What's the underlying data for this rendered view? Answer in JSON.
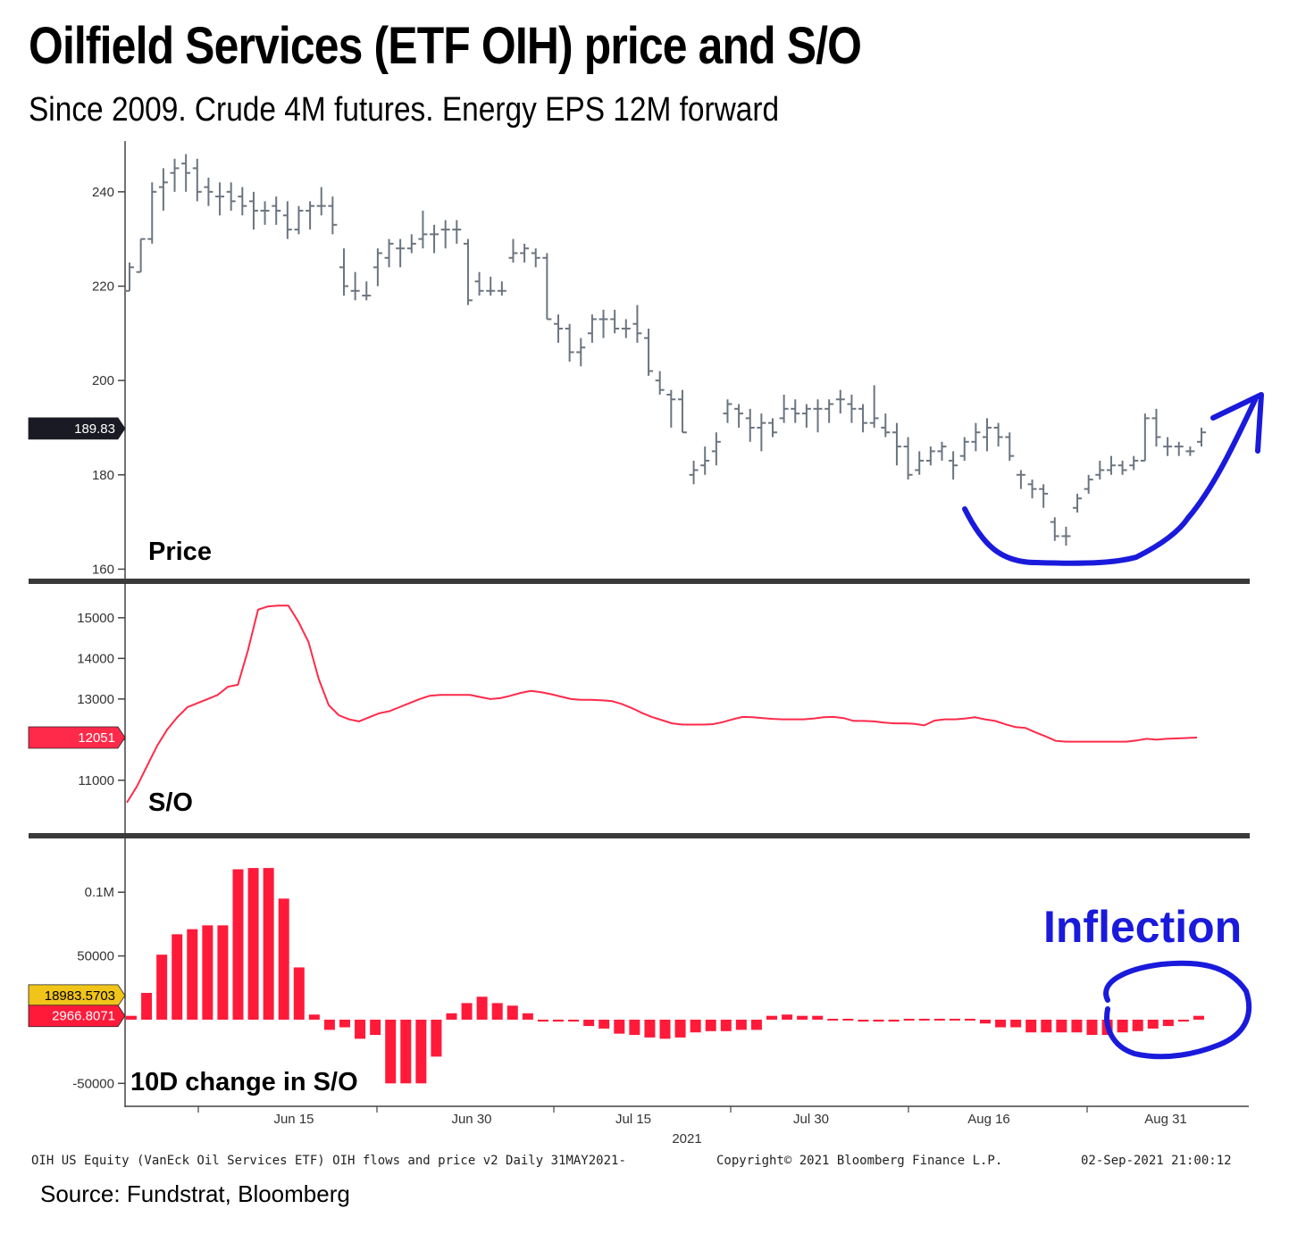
{
  "title": "Oilfield Services (ETF OIH) price and S/O",
  "subtitle": "Since 2009.  Crude 4M futures.  Energy EPS  12M forward",
  "source": "Source: Fundstrat, Bloomberg",
  "footer": {
    "left": "OIH US Equity (VanEck Oil Services ETF) OIH flows and price v2  Daily 31MAY2021-",
    "center": "Copyright© 2021 Bloomberg Finance L.P.",
    "right": "02-Sep-2021 21:00:12"
  },
  "annotation": "Inflection",
  "colors": {
    "price_bar": "#6b7580",
    "so_line": "#ff2a4a",
    "change_bar": "#ff1a3a",
    "annotation": "#1a1adc",
    "price_tag": "#1a1a24",
    "yellow_tag": "#f0c419"
  },
  "chart_data": [
    {
      "type": "ohlc",
      "panel_label": "Price",
      "ylim": [
        158,
        250
      ],
      "yticks": [
        "160",
        "180",
        "200",
        "220",
        "240"
      ],
      "last_value_label": "189.83",
      "bars": [
        {
          "o": 219,
          "h": 225,
          "l": 219,
          "c": 224
        },
        {
          "o": 223,
          "h": 230,
          "l": 223,
          "c": 230
        },
        {
          "o": 230,
          "h": 242,
          "l": 229,
          "c": 240
        },
        {
          "o": 241,
          "h": 245,
          "l": 236,
          "c": 242
        },
        {
          "o": 244,
          "h": 247,
          "l": 240,
          "c": 245
        },
        {
          "o": 246,
          "h": 248,
          "l": 240,
          "c": 244
        },
        {
          "o": 245,
          "h": 247,
          "l": 238,
          "c": 240
        },
        {
          "o": 241,
          "h": 243,
          "l": 237,
          "c": 240
        },
        {
          "o": 239,
          "h": 242,
          "l": 235,
          "c": 239
        },
        {
          "o": 240,
          "h": 242,
          "l": 236,
          "c": 238
        },
        {
          "o": 239,
          "h": 241,
          "l": 235,
          "c": 237
        },
        {
          "o": 238,
          "h": 240,
          "l": 232,
          "c": 236
        },
        {
          "o": 236,
          "h": 238,
          "l": 233,
          "c": 236
        },
        {
          "o": 237,
          "h": 239,
          "l": 233,
          "c": 236
        },
        {
          "o": 235,
          "h": 238,
          "l": 230,
          "c": 232
        },
        {
          "o": 232,
          "h": 237,
          "l": 231,
          "c": 236
        },
        {
          "o": 236,
          "h": 238,
          "l": 232,
          "c": 237
        },
        {
          "o": 237,
          "h": 241,
          "l": 235,
          "c": 237
        },
        {
          "o": 237,
          "h": 239,
          "l": 231,
          "c": 233
        },
        {
          "o": 224,
          "h": 228,
          "l": 218,
          "c": 220
        },
        {
          "o": 219,
          "h": 223,
          "l": 217,
          "c": 219
        },
        {
          "o": 218,
          "h": 221,
          "l": 217,
          "c": 218
        },
        {
          "o": 224,
          "h": 228,
          "l": 220,
          "c": 227
        },
        {
          "o": 226,
          "h": 230,
          "l": 224,
          "c": 229
        },
        {
          "o": 228,
          "h": 230,
          "l": 224,
          "c": 228
        },
        {
          "o": 228,
          "h": 231,
          "l": 227,
          "c": 229
        },
        {
          "o": 230,
          "h": 236,
          "l": 228,
          "c": 231
        },
        {
          "o": 231,
          "h": 233,
          "l": 227,
          "c": 231
        },
        {
          "o": 232,
          "h": 234,
          "l": 228,
          "c": 232
        },
        {
          "o": 232,
          "h": 234,
          "l": 229,
          "c": 232
        },
        {
          "o": 229,
          "h": 230,
          "l": 216,
          "c": 217
        },
        {
          "o": 221,
          "h": 223,
          "l": 218,
          "c": 219
        },
        {
          "o": 219,
          "h": 222,
          "l": 218,
          "c": 219
        },
        {
          "o": 219,
          "h": 221,
          "l": 218,
          "c": 219
        },
        {
          "o": 226,
          "h": 230,
          "l": 225,
          "c": 227
        },
        {
          "o": 227,
          "h": 229,
          "l": 225,
          "c": 228
        },
        {
          "o": 227,
          "h": 228,
          "l": 224,
          "c": 226
        },
        {
          "o": 226,
          "h": 227,
          "l": 213,
          "c": 213
        },
        {
          "o": 212,
          "h": 214,
          "l": 208,
          "c": 211
        },
        {
          "o": 211,
          "h": 212,
          "l": 204,
          "c": 206
        },
        {
          "o": 206,
          "h": 209,
          "l": 203,
          "c": 207
        },
        {
          "o": 210,
          "h": 214,
          "l": 208,
          "c": 213
        },
        {
          "o": 213,
          "h": 215,
          "l": 209,
          "c": 213
        },
        {
          "o": 213,
          "h": 215,
          "l": 210,
          "c": 211
        },
        {
          "o": 211,
          "h": 213,
          "l": 209,
          "c": 211
        },
        {
          "o": 212,
          "h": 216,
          "l": 208,
          "c": 210
        },
        {
          "o": 209,
          "h": 211,
          "l": 201,
          "c": 202
        },
        {
          "o": 200,
          "h": 202,
          "l": 197,
          "c": 198
        },
        {
          "o": 197,
          "h": 198,
          "l": 190,
          "c": 196
        },
        {
          "o": 196,
          "h": 198,
          "l": 189,
          "c": 189
        },
        {
          "o": 180,
          "h": 183,
          "l": 178,
          "c": 181
        },
        {
          "o": 182,
          "h": 186,
          "l": 180,
          "c": 183
        },
        {
          "o": 185,
          "h": 189,
          "l": 182,
          "c": 187
        },
        {
          "o": 193,
          "h": 196,
          "l": 191,
          "c": 195
        },
        {
          "o": 194,
          "h": 195,
          "l": 190,
          "c": 193
        },
        {
          "o": 192,
          "h": 194,
          "l": 187,
          "c": 190
        },
        {
          "o": 190,
          "h": 193,
          "l": 185,
          "c": 191
        },
        {
          "o": 191,
          "h": 192,
          "l": 188,
          "c": 189
        },
        {
          "o": 192,
          "h": 197,
          "l": 191,
          "c": 194
        },
        {
          "o": 194,
          "h": 196,
          "l": 191,
          "c": 193
        },
        {
          "o": 193,
          "h": 195,
          "l": 190,
          "c": 194
        },
        {
          "o": 194,
          "h": 196,
          "l": 189,
          "c": 194
        },
        {
          "o": 194,
          "h": 196,
          "l": 191,
          "c": 195
        },
        {
          "o": 196,
          "h": 198,
          "l": 193,
          "c": 196
        },
        {
          "o": 195,
          "h": 197,
          "l": 191,
          "c": 194
        },
        {
          "o": 194,
          "h": 195,
          "l": 189,
          "c": 191
        },
        {
          "o": 191,
          "h": 199,
          "l": 190,
          "c": 192
        },
        {
          "o": 190,
          "h": 193,
          "l": 188,
          "c": 189
        },
        {
          "o": 189,
          "h": 191,
          "l": 182,
          "c": 186
        },
        {
          "o": 186,
          "h": 188,
          "l": 179,
          "c": 180
        },
        {
          "o": 181,
          "h": 185,
          "l": 180,
          "c": 183
        },
        {
          "o": 183,
          "h": 186,
          "l": 182,
          "c": 185
        },
        {
          "o": 185,
          "h": 187,
          "l": 183,
          "c": 186
        },
        {
          "o": 183,
          "h": 185,
          "l": 179,
          "c": 182
        },
        {
          "o": 184,
          "h": 188,
          "l": 183,
          "c": 187
        },
        {
          "o": 187,
          "h": 191,
          "l": 185,
          "c": 189
        },
        {
          "o": 188,
          "h": 192,
          "l": 185,
          "c": 190
        },
        {
          "o": 190,
          "h": 191,
          "l": 186,
          "c": 188
        },
        {
          "o": 188,
          "h": 189,
          "l": 183,
          "c": 184
        },
        {
          "o": 180,
          "h": 181,
          "l": 177,
          "c": 180
        },
        {
          "o": 178,
          "h": 179,
          "l": 175,
          "c": 177
        },
        {
          "o": 177,
          "h": 178,
          "l": 173,
          "c": 176
        },
        {
          "o": 170,
          "h": 171,
          "l": 166,
          "c": 167
        },
        {
          "o": 167,
          "h": 169,
          "l": 165,
          "c": 167
        },
        {
          "o": 173,
          "h": 176,
          "l": 172,
          "c": 175
        },
        {
          "o": 177,
          "h": 180,
          "l": 176,
          "c": 179
        },
        {
          "o": 180,
          "h": 183,
          "l": 179,
          "c": 181
        },
        {
          "o": 181,
          "h": 184,
          "l": 180,
          "c": 182
        },
        {
          "o": 182,
          "h": 183,
          "l": 180,
          "c": 181
        },
        {
          "o": 182,
          "h": 184,
          "l": 181,
          "c": 183
        },
        {
          "o": 183,
          "h": 193,
          "l": 183,
          "c": 192
        },
        {
          "o": 192,
          "h": 194,
          "l": 186,
          "c": 188
        },
        {
          "o": 186,
          "h": 188,
          "l": 184,
          "c": 186
        },
        {
          "o": 186,
          "h": 187,
          "l": 184,
          "c": 186
        },
        {
          "o": 185,
          "h": 186,
          "l": 184,
          "c": 185
        },
        {
          "o": 187,
          "h": 190,
          "l": 186,
          "c": 189
        }
      ]
    },
    {
      "type": "line",
      "panel_label": "S/O",
      "ylim": [
        9700,
        15700
      ],
      "yticks": [
        "11000",
        "12000",
        "13000",
        "14000",
        "15000"
      ],
      "last_value_label": "12051",
      "values": [
        10450,
        10850,
        11350,
        11850,
        12250,
        12550,
        12800,
        12900,
        13000,
        13100,
        13300,
        13350,
        14200,
        15200,
        15280,
        15300,
        15300,
        14900,
        14400,
        13500,
        12850,
        12600,
        12500,
        12450,
        12550,
        12650,
        12700,
        12800,
        12900,
        13000,
        13080,
        13100,
        13100,
        13100,
        13100,
        13050,
        13000,
        13020,
        13080,
        13150,
        13200,
        13170,
        13120,
        13060,
        13000,
        12980,
        12980,
        12970,
        12950,
        12880,
        12780,
        12660,
        12560,
        12480,
        12400,
        12370,
        12370,
        12370,
        12380,
        12430,
        12500,
        12560,
        12550,
        12530,
        12510,
        12500,
        12500,
        12500,
        12520,
        12550,
        12560,
        12530,
        12460,
        12460,
        12450,
        12420,
        12400,
        12400,
        12390,
        12350,
        12470,
        12500,
        12500,
        12520,
        12550,
        12500,
        12460,
        12380,
        12310,
        12290,
        12180,
        12080,
        11970,
        11950,
        11950,
        11950,
        11950,
        11950,
        11950,
        11950,
        11980,
        12020,
        12000,
        12020,
        12030,
        12040,
        12051
      ]
    },
    {
      "type": "bar",
      "panel_label": "10D change in S/O",
      "ylim": [
        -68000,
        138000
      ],
      "yticks": [
        "-50000",
        "50000",
        "0.1M"
      ],
      "last_value_label": "2966.8071",
      "secondary_value_label": "18983.5703",
      "values": [
        3000,
        21000,
        51000,
        67000,
        71000,
        74000,
        74000,
        118000,
        119000,
        119000,
        95000,
        41000,
        4000,
        -8000,
        -6000,
        -15000,
        -12000,
        -50000,
        -50000,
        -50000,
        -29000,
        5000,
        13000,
        18000,
        13000,
        11000,
        5000,
        -1500,
        -1500,
        -1500,
        -5000,
        -7000,
        -11000,
        -12000,
        -14000,
        -15000,
        -14000,
        -10000,
        -9000,
        -9000,
        -8000,
        -8000,
        3000,
        4000,
        3000,
        3000,
        1000,
        500,
        -1500,
        -1500,
        -1500,
        -1000,
        -500,
        0,
        0,
        0,
        -3000,
        -6000,
        -6000,
        -10000,
        -10000,
        -10000,
        -10000,
        -12000,
        -12000,
        -10000,
        -9000,
        -7000,
        -5000,
        -1500,
        3000
      ],
      "x_tick_labels": [
        "Jun 15",
        "Jun 30",
        "Jul 15",
        "Jul 30",
        "Aug 16",
        "Aug 31"
      ],
      "x_year_label": "2021"
    }
  ]
}
